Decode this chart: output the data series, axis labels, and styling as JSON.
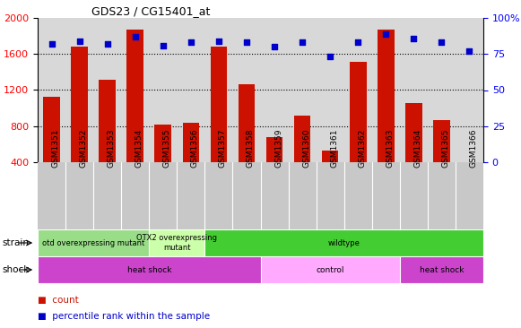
{
  "title": "GDS23 / CG15401_at",
  "samples": [
    "GSM1351",
    "GSM1352",
    "GSM1353",
    "GSM1354",
    "GSM1355",
    "GSM1356",
    "GSM1357",
    "GSM1358",
    "GSM1359",
    "GSM1360",
    "GSM1361",
    "GSM1362",
    "GSM1363",
    "GSM1364",
    "GSM1365",
    "GSM1366"
  ],
  "counts": [
    1130,
    1680,
    1310,
    1870,
    820,
    840,
    1680,
    1260,
    680,
    920,
    530,
    1510,
    1870,
    1060,
    870,
    390
  ],
  "percentiles": [
    82,
    84,
    82,
    87,
    81,
    83,
    84,
    83,
    80,
    83,
    73,
    83,
    89,
    86,
    83,
    77
  ],
  "bar_color": "#cc1100",
  "dot_color": "#0000cc",
  "ylim_left": [
    400,
    2000
  ],
  "ylim_right": [
    0,
    100
  ],
  "yticks_left": [
    400,
    800,
    1200,
    1600,
    2000
  ],
  "yticks_right": [
    0,
    25,
    50,
    75,
    100
  ],
  "grid_values": [
    800,
    1200,
    1600
  ],
  "bg_color": "#d8d8d8",
  "tick_bg_color": "#c8c8c8",
  "strain_groups": [
    {
      "label": "otd overexpressing mutant",
      "start": 0,
      "end": 4,
      "color": "#99dd88"
    },
    {
      "label": "OTX2 overexpressing\nmutant",
      "start": 4,
      "end": 6,
      "color": "#ccffaa"
    },
    {
      "label": "wildtype",
      "start": 6,
      "end": 16,
      "color": "#44cc33"
    }
  ],
  "shock_groups": [
    {
      "label": "heat shock",
      "start": 0,
      "end": 8,
      "color": "#cc44cc"
    },
    {
      "label": "control",
      "start": 8,
      "end": 13,
      "color": "#ffaaff"
    },
    {
      "label": "heat shock",
      "start": 13,
      "end": 16,
      "color": "#cc44cc"
    }
  ],
  "legend_count_color": "#cc1100",
  "legend_pct_color": "#0000cc"
}
